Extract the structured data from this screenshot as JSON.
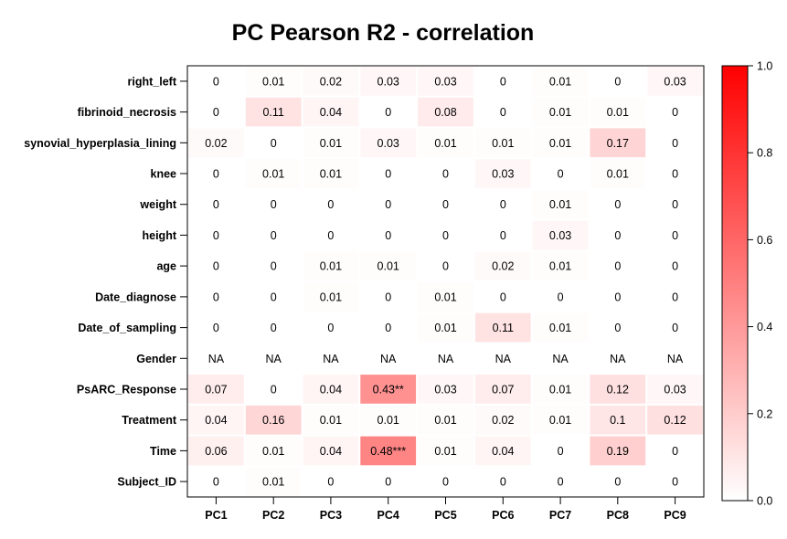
{
  "chart_data": {
    "type": "heatmap",
    "title": "PC Pearson R2 - correlation",
    "columns": [
      "PC1",
      "PC2",
      "PC3",
      "PC4",
      "PC5",
      "PC6",
      "PC7",
      "PC8",
      "PC9"
    ],
    "rows": [
      "right_left",
      "fibrinoid_necrosis",
      "synovial_hyperplasia_lining",
      "knee",
      "weight",
      "height",
      "age",
      "Date_diagnose",
      "Date_of_sampling",
      "Gender",
      "PsARC_Response",
      "Treatment",
      "Time",
      "Subject_ID"
    ],
    "values": [
      [
        0,
        0.01,
        0.02,
        0.03,
        0.03,
        0,
        0.01,
        0,
        0.03
      ],
      [
        0,
        0.11,
        0.04,
        0,
        0.08,
        0,
        0.01,
        0.01,
        0
      ],
      [
        0.02,
        0,
        0.01,
        0.03,
        0.01,
        0.01,
        0.01,
        0.17,
        0
      ],
      [
        0,
        0.01,
        0.01,
        0,
        0,
        0.03,
        0,
        0.01,
        0
      ],
      [
        0,
        0,
        0,
        0,
        0,
        0,
        0.01,
        0,
        0
      ],
      [
        0,
        0,
        0,
        0,
        0,
        0,
        0.03,
        0,
        0
      ],
      [
        0,
        0,
        0.01,
        0.01,
        0,
        0.02,
        0.01,
        0,
        0
      ],
      [
        0,
        0,
        0.01,
        0,
        0.01,
        0,
        0,
        0,
        0
      ],
      [
        0,
        0,
        0,
        0,
        0.01,
        0.11,
        0.01,
        0,
        0
      ],
      [
        null,
        null,
        null,
        null,
        null,
        null,
        null,
        null,
        null
      ],
      [
        0.07,
        0,
        0.04,
        0.43,
        0.03,
        0.07,
        0.01,
        0.12,
        0.03
      ],
      [
        0.04,
        0.16,
        0.01,
        0.01,
        0.01,
        0.02,
        0.01,
        0.1,
        0.12
      ],
      [
        0.06,
        0.01,
        0.04,
        0.48,
        0.01,
        0.04,
        0,
        0.19,
        0
      ],
      [
        0,
        0.01,
        0,
        0,
        0,
        0,
        0,
        0,
        0
      ]
    ],
    "labels": [
      [
        "0",
        "0.01",
        "0.02",
        "0.03",
        "0.03",
        "0",
        "0.01",
        "0",
        "0.03"
      ],
      [
        "0",
        "0.11",
        "0.04",
        "0",
        "0.08",
        "0",
        "0.01",
        "0.01",
        "0"
      ],
      [
        "0.02",
        "0",
        "0.01",
        "0.03",
        "0.01",
        "0.01",
        "0.01",
        "0.17",
        "0"
      ],
      [
        "0",
        "0.01",
        "0.01",
        "0",
        "0",
        "0.03",
        "0",
        "0.01",
        "0"
      ],
      [
        "0",
        "0",
        "0",
        "0",
        "0",
        "0",
        "0.01",
        "0",
        "0"
      ],
      [
        "0",
        "0",
        "0",
        "0",
        "0",
        "0",
        "0.03",
        "0",
        "0"
      ],
      [
        "0",
        "0",
        "0.01",
        "0.01",
        "0",
        "0.02",
        "0.01",
        "0",
        "0"
      ],
      [
        "0",
        "0",
        "0.01",
        "0",
        "0.01",
        "0",
        "0",
        "0",
        "0"
      ],
      [
        "0",
        "0",
        "0",
        "0",
        "0.01",
        "0.11",
        "0.01",
        "0",
        "0"
      ],
      [
        "NA",
        "NA",
        "NA",
        "NA",
        "NA",
        "NA",
        "NA",
        "NA",
        "NA"
      ],
      [
        "0.07",
        "0",
        "0.04",
        "0.43**",
        "0.03",
        "0.07",
        "0.01",
        "0.12",
        "0.03"
      ],
      [
        "0.04",
        "0.16",
        "0.01",
        "0.01",
        "0.01",
        "0.02",
        "0.01",
        "0.1",
        "0.12"
      ],
      [
        "0.06",
        "0.01",
        "0.04",
        "0.48***",
        "0.01",
        "0.04",
        "0",
        "0.19",
        "0"
      ],
      [
        "0",
        "0.01",
        "0",
        "0",
        "0",
        "0",
        "0",
        "0",
        "0"
      ]
    ],
    "colorbar": {
      "range": [
        0,
        1
      ],
      "ticks": [
        "0.0",
        "0.2",
        "0.4",
        "0.6",
        "0.8",
        "1.0"
      ],
      "tick_values": [
        0,
        0.2,
        0.4,
        0.6,
        0.8,
        1.0
      ],
      "low_color": "#ffffff",
      "high_color": "#ff0000"
    }
  }
}
